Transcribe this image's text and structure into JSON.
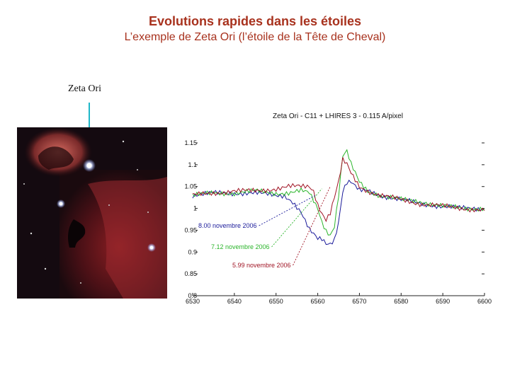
{
  "slide": {
    "title": "Evolutions rapides dans les étoiles",
    "subtitle": "L’exemple de Zeta Ori (l’étoile de la Tête de Cheval)",
    "star_label": "Zeta Ori"
  },
  "colors": {
    "title": "#a8321e",
    "pointer": "#1fb7c8"
  },
  "chart_data": {
    "type": "line",
    "title": "Zeta Ori - C11 + LHIRES 3 - 0.115 A/pixel",
    "xlabel": "",
    "ylabel": "",
    "xlim": [
      6530,
      6600
    ],
    "ylim": [
      0.8,
      1.15
    ],
    "x_ticks": [
      6530,
      6540,
      6550,
      6560,
      6570,
      6580,
      6590,
      6600
    ],
    "y_ticks": [
      0.8,
      0.85,
      0.9,
      0.95,
      1,
      1.05,
      1.1,
      1.15
    ],
    "y_tick_labels": [
      "0.8",
      "0.85",
      "0.9",
      "0.95",
      "1",
      "1.05",
      "1.1",
      "1.15"
    ],
    "grid": false,
    "series": [
      {
        "name": "8.00 novembre 2006",
        "color": "#1a1a9a",
        "x": [
          6530,
          6535,
          6540,
          6545,
          6550,
          6552,
          6554,
          6556,
          6558,
          6560,
          6561,
          6562,
          6563,
          6564,
          6565,
          6566,
          6567,
          6568,
          6570,
          6572,
          6575,
          6580,
          6585,
          6590,
          6595,
          6600
        ],
        "y": [
          1.03,
          1.035,
          1.035,
          1.035,
          1.03,
          1.03,
          1.015,
          0.99,
          0.95,
          0.93,
          0.93,
          0.92,
          0.92,
          0.93,
          0.97,
          1.04,
          1.06,
          1.06,
          1.04,
          1.04,
          1.03,
          1.02,
          1.01,
          1.005,
          1.0,
          1.0
        ]
      },
      {
        "name": "7.12 novembre 2006",
        "color": "#2bb52b",
        "x": [
          6530,
          6535,
          6540,
          6545,
          6550,
          6553,
          6556,
          6558,
          6560,
          6561,
          6562,
          6563,
          6564,
          6565,
          6566,
          6567,
          6568,
          6570,
          6572,
          6575,
          6580,
          6585,
          6590,
          6595,
          6600
        ],
        "y": [
          1.03,
          1.035,
          1.035,
          1.04,
          1.035,
          1.035,
          1.04,
          1.035,
          1.0,
          0.97,
          0.95,
          0.94,
          0.96,
          1.03,
          1.12,
          1.13,
          1.1,
          1.06,
          1.04,
          1.03,
          1.02,
          1.015,
          1.005,
          1.0,
          1.0
        ]
      },
      {
        "name": "5.99 novembre 2006",
        "color": "#a01424",
        "x": [
          6530,
          6535,
          6540,
          6545,
          6550,
          6553,
          6556,
          6558,
          6559,
          6560,
          6561,
          6562,
          6563,
          6565,
          6566,
          6567,
          6568,
          6570,
          6572,
          6575,
          6580,
          6585,
          6590,
          6595,
          6600
        ],
        "y": [
          1.03,
          1.035,
          1.04,
          1.04,
          1.045,
          1.05,
          1.05,
          1.05,
          1.04,
          1.01,
          0.99,
          0.975,
          0.99,
          1.06,
          1.11,
          1.1,
          1.08,
          1.05,
          1.04,
          1.03,
          1.02,
          1.01,
          1.005,
          1.0,
          0.995
        ]
      }
    ]
  }
}
